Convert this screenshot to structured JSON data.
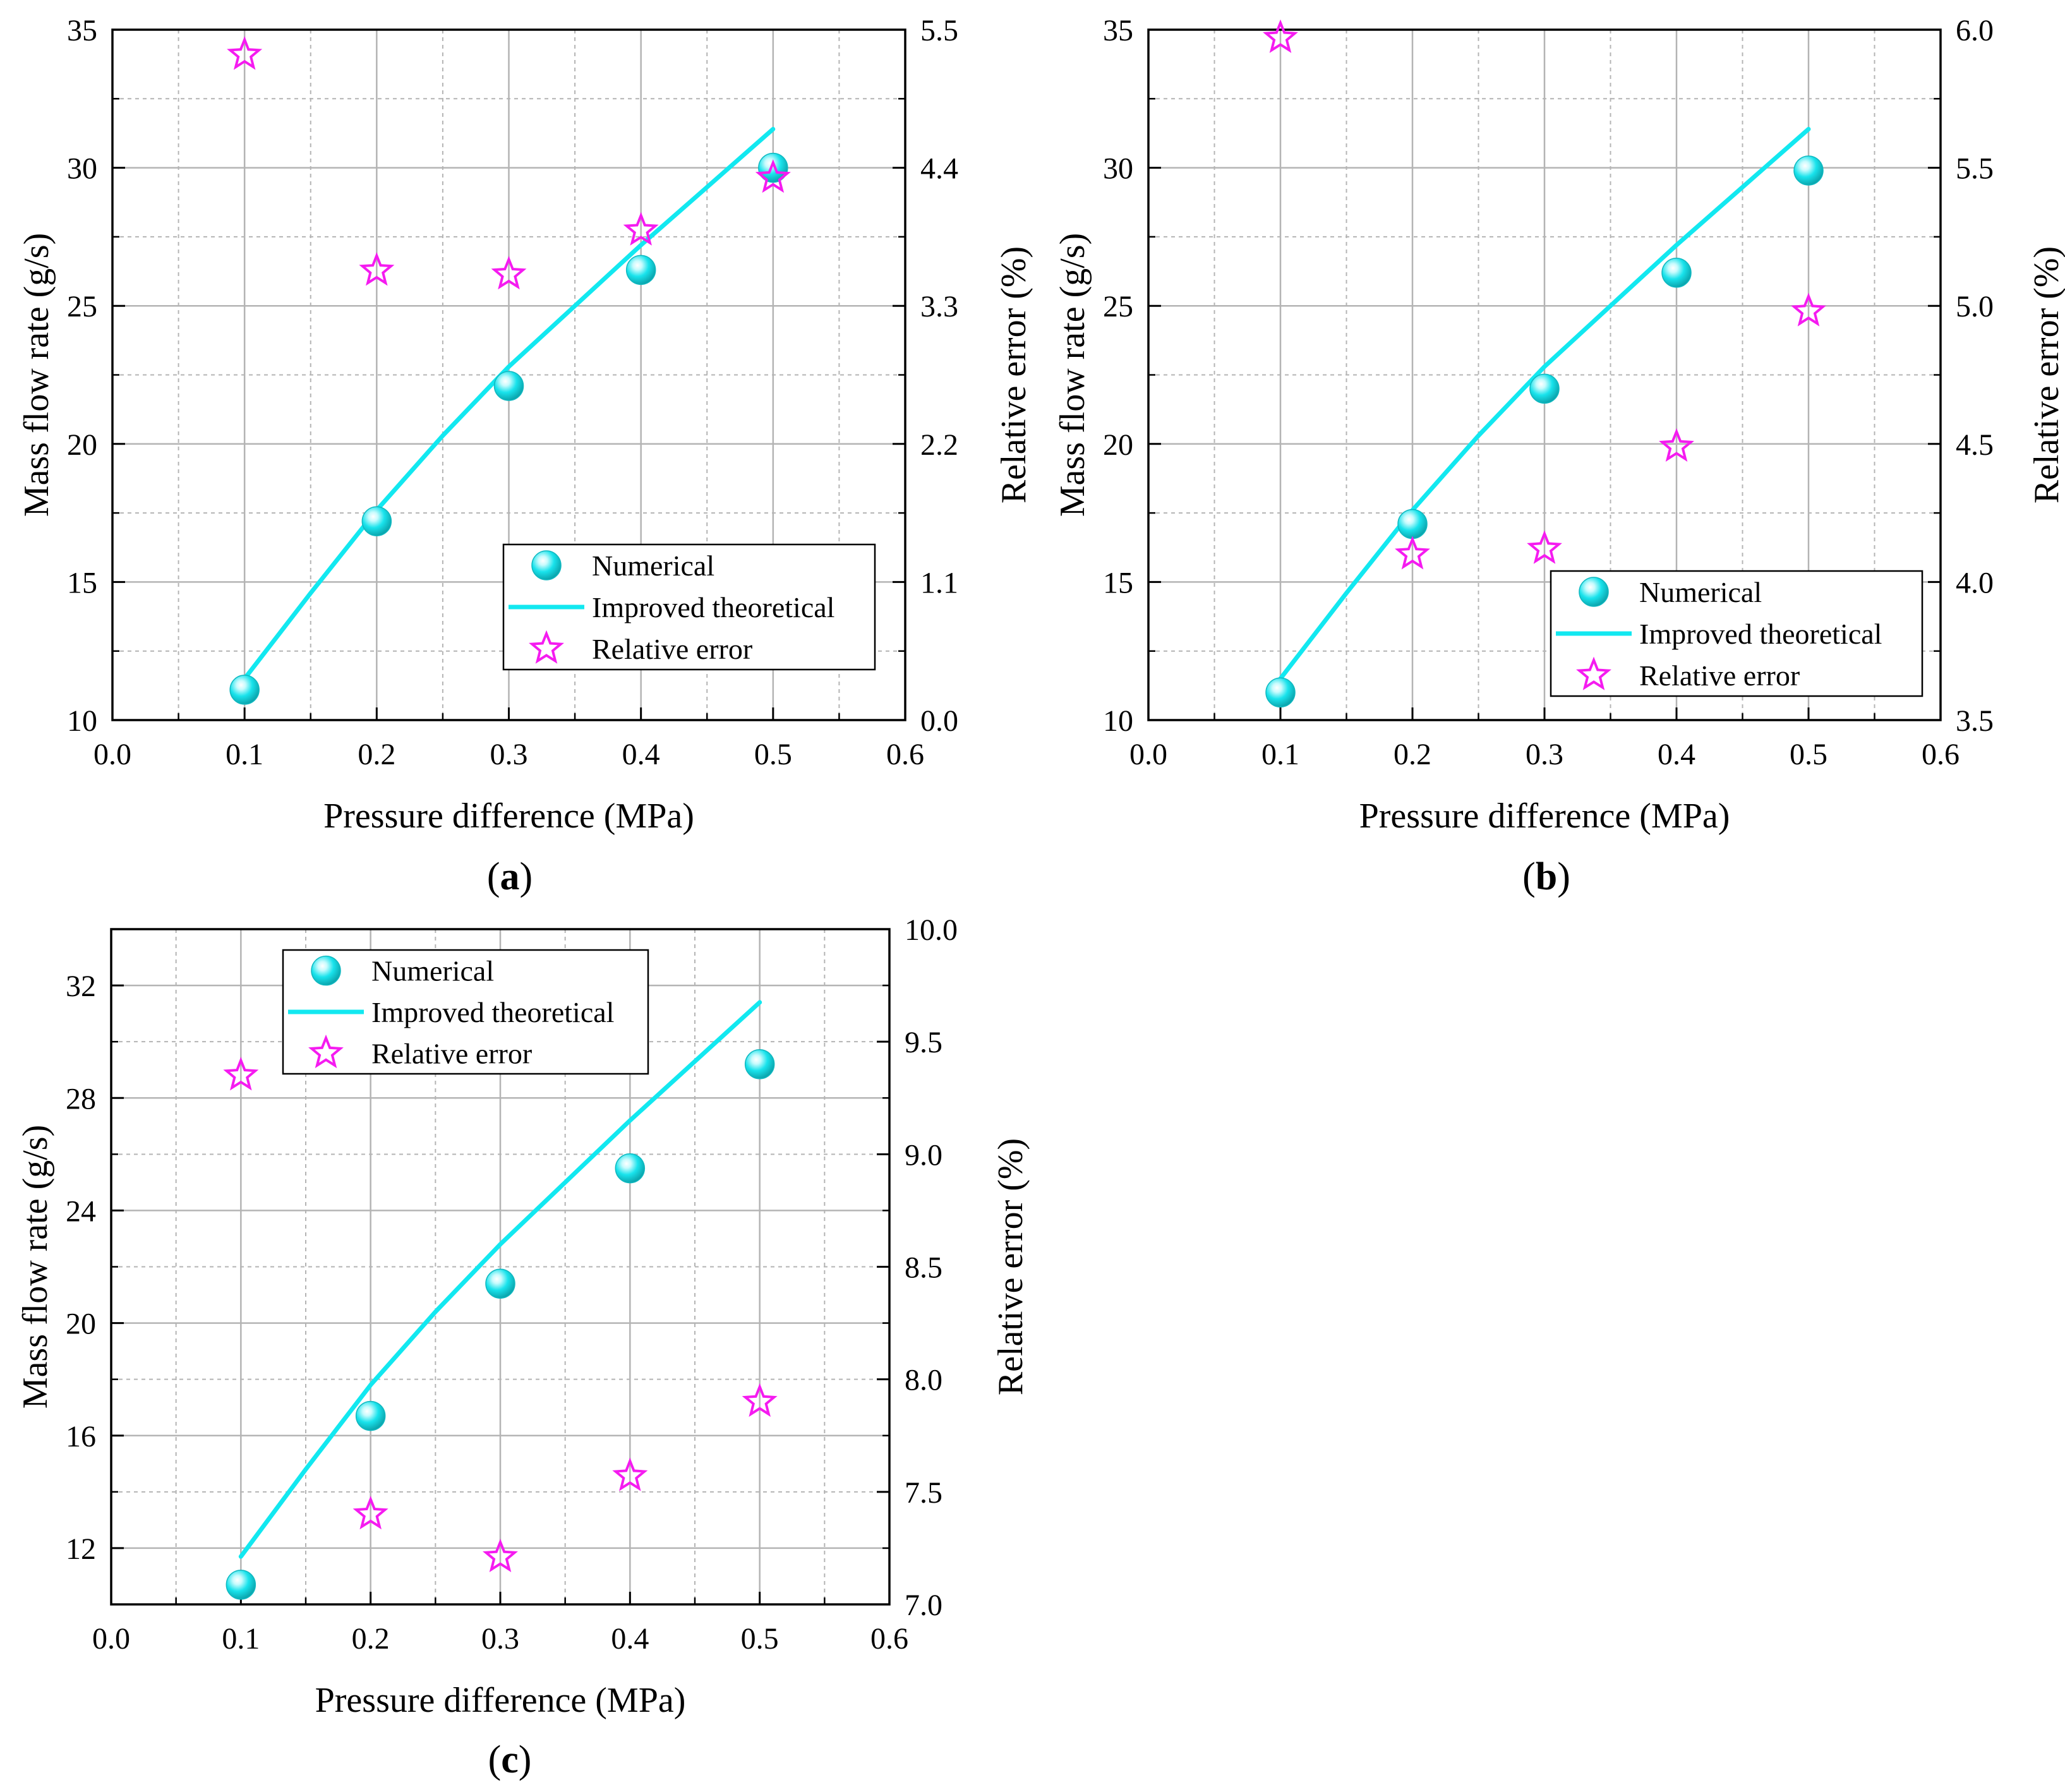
{
  "figure": {
    "colors": {
      "numerical": "#19e3ec",
      "theory": "#12e8f0",
      "error": "#f51bf0",
      "grid": "#b4b4b4"
    }
  },
  "chart_data": [
    {
      "panel": "a",
      "type": "scatter+line",
      "xlabel": "Pressure difference (MPa)",
      "ylabel": "Mass flow rate (g/s)",
      "y2label": "Relative error (%)",
      "xlim": [
        0.0,
        0.6
      ],
      "ylim": [
        10,
        35
      ],
      "y2lim": [
        0.0,
        5.5
      ],
      "xticks": [
        "0.0",
        "0.1",
        "0.2",
        "0.3",
        "0.4",
        "0.5",
        "0.6"
      ],
      "yticks": [
        "10",
        "15",
        "20",
        "25",
        "30",
        "35"
      ],
      "y2ticks": [
        "0.0",
        "1.1",
        "2.2",
        "3.3",
        "4.4",
        "5.5"
      ],
      "legend": {
        "position": "lower-right",
        "entries": [
          "Numerical",
          "Improved theoretical",
          "Relative error"
        ]
      },
      "series": [
        {
          "name": "Numerical",
          "kind": "sphere",
          "axis": "left",
          "x": [
            0.1,
            0.2,
            0.3,
            0.4,
            0.5
          ],
          "y": [
            11.1,
            17.2,
            22.1,
            26.3,
            30.0
          ]
        },
        {
          "name": "Improved theoretical",
          "kind": "line",
          "axis": "left",
          "x": [
            0.1,
            0.15,
            0.2,
            0.25,
            0.3,
            0.35,
            0.4,
            0.45,
            0.5
          ],
          "y": [
            11.5,
            14.6,
            17.6,
            20.3,
            22.8,
            25.0,
            27.2,
            29.3,
            31.4
          ]
        },
        {
          "name": "Relative error",
          "kind": "star",
          "axis": "right",
          "x": [
            0.1,
            0.2,
            0.3,
            0.4,
            0.5
          ],
          "y": [
            5.3,
            3.58,
            3.55,
            3.9,
            4.32
          ]
        }
      ]
    },
    {
      "panel": "b",
      "type": "scatter+line",
      "xlabel": "Pressure difference (MPa)",
      "ylabel": "Mass flow rate (g/s)",
      "y2label": "Relative error (%)",
      "xlim": [
        0.0,
        0.6
      ],
      "ylim": [
        10,
        35
      ],
      "y2lim": [
        3.5,
        6.0
      ],
      "xticks": [
        "0.0",
        "0.1",
        "0.2",
        "0.3",
        "0.4",
        "0.5",
        "0.6"
      ],
      "yticks": [
        "10",
        "15",
        "20",
        "25",
        "30",
        "35"
      ],
      "y2ticks": [
        "3.5",
        "4.0",
        "4.5",
        "5.0",
        "5.5",
        "6.0"
      ],
      "legend": {
        "position": "lower-right",
        "entries": [
          "Numerical",
          "Improved theoretical",
          "Relative error"
        ]
      },
      "series": [
        {
          "name": "Numerical",
          "kind": "sphere",
          "axis": "left",
          "x": [
            0.1,
            0.2,
            0.3,
            0.4,
            0.5
          ],
          "y": [
            11.0,
            17.1,
            22.0,
            26.2,
            29.9
          ]
        },
        {
          "name": "Improved theoretical",
          "kind": "line",
          "axis": "left",
          "x": [
            0.1,
            0.15,
            0.2,
            0.25,
            0.3,
            0.35,
            0.4,
            0.45,
            0.5
          ],
          "y": [
            11.5,
            14.6,
            17.6,
            20.3,
            22.8,
            25.0,
            27.2,
            29.3,
            31.4
          ]
        },
        {
          "name": "Relative error",
          "kind": "star",
          "axis": "right",
          "x": [
            0.1,
            0.2,
            0.3,
            0.4,
            0.5
          ],
          "y": [
            5.97,
            4.1,
            4.12,
            4.49,
            4.98
          ]
        }
      ]
    },
    {
      "panel": "c",
      "type": "scatter+line",
      "xlabel": "Pressure difference (MPa)",
      "ylabel": "Mass flow rate (g/s)",
      "y2label": "Relative error (%)",
      "xlim": [
        0.0,
        0.6
      ],
      "ylim": [
        10,
        34
      ],
      "y2lim": [
        7.0,
        10.0
      ],
      "xticks": [
        "0.0",
        "0.1",
        "0.2",
        "0.3",
        "0.4",
        "0.5",
        "0.6"
      ],
      "yticks": [
        "12",
        "16",
        "20",
        "24",
        "28",
        "32"
      ],
      "yticks_values": [
        12,
        16,
        20,
        24,
        28,
        32
      ],
      "y2ticks": [
        "7.0",
        "7.5",
        "8.0",
        "8.5",
        "9.0",
        "9.5",
        "10.0"
      ],
      "legend": {
        "position": "top-left",
        "entries": [
          "Numerical",
          "Improved theoretical",
          "Relative error"
        ]
      },
      "series": [
        {
          "name": "Numerical",
          "kind": "sphere",
          "axis": "left",
          "x": [
            0.1,
            0.2,
            0.3,
            0.4,
            0.5
          ],
          "y": [
            10.7,
            16.7,
            21.4,
            25.5,
            29.2
          ]
        },
        {
          "name": "Improved theoretical",
          "kind": "line",
          "axis": "left",
          "x": [
            0.1,
            0.15,
            0.2,
            0.25,
            0.3,
            0.35,
            0.4,
            0.45,
            0.5
          ],
          "y": [
            11.7,
            14.8,
            17.8,
            20.4,
            22.8,
            25.0,
            27.2,
            29.3,
            31.4
          ]
        },
        {
          "name": "Relative error",
          "kind": "star",
          "axis": "right",
          "x": [
            0.1,
            0.2,
            0.3,
            0.4,
            0.5
          ],
          "y": [
            9.35,
            7.4,
            7.21,
            7.57,
            7.9
          ]
        }
      ]
    }
  ],
  "panel_labels": {
    "a": "a",
    "b": "b",
    "c": "c"
  }
}
